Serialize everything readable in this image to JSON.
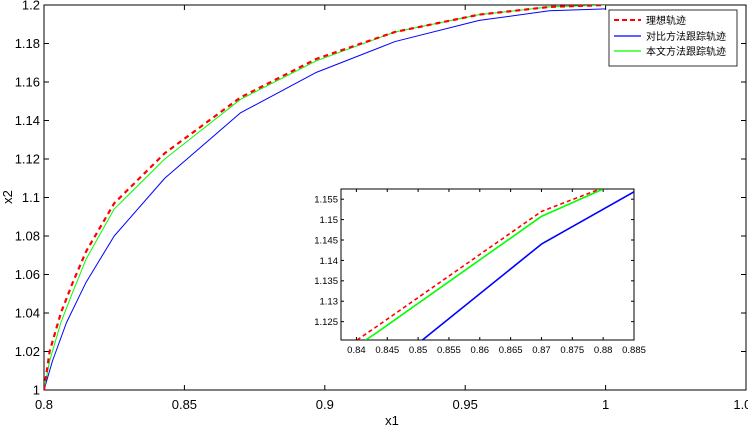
{
  "chart_data": [
    {
      "type": "line",
      "title": "",
      "xlabel": "x1",
      "ylabel": "x2",
      "xlim": [
        0.8,
        1.05
      ],
      "ylim": [
        1.0,
        1.2
      ],
      "xticks": [
        "0.8",
        "0.85",
        "0.9",
        "0.95",
        "1",
        "1.05"
      ],
      "yticks": [
        "1",
        "1.02",
        "1.04",
        "1.06",
        "1.08",
        "1.1",
        "1.12",
        "1.14",
        "1.16",
        "1.18",
        "1.2"
      ],
      "grid": false,
      "legend_position": "top-right",
      "series": [
        {
          "name": "理想轨迹",
          "color": "#ff0000",
          "style": "dashed",
          "points": [
            [
              0.8,
              1.0
            ],
            [
              0.802,
              1.02
            ],
            [
              0.806,
              1.04
            ],
            [
              0.81,
              1.055
            ],
            [
              0.815,
              1.072
            ],
            [
              0.825,
              1.097
            ],
            [
              0.843,
              1.123
            ],
            [
              0.87,
              1.152
            ],
            [
              0.897,
              1.172
            ],
            [
              0.925,
              1.186
            ],
            [
              0.955,
              1.195
            ],
            [
              0.98,
              1.199
            ],
            [
              1.0,
              1.2
            ]
          ]
        },
        {
          "name": "对比方法跟踪轨迹",
          "color": "#0000ff",
          "style": "solid",
          "points": [
            [
              0.8,
              1.0
            ],
            [
              0.803,
              1.015
            ],
            [
              0.808,
              1.035
            ],
            [
              0.815,
              1.056
            ],
            [
              0.825,
              1.08
            ],
            [
              0.843,
              1.11
            ],
            [
              0.87,
              1.144
            ],
            [
              0.897,
              1.165
            ],
            [
              0.925,
              1.181
            ],
            [
              0.955,
              1.192
            ],
            [
              0.98,
              1.197
            ],
            [
              1.0,
              1.198
            ]
          ]
        },
        {
          "name": "本文方法跟踪轨迹",
          "color": "#00ff00",
          "style": "solid",
          "points": [
            [
              0.8,
              1.0
            ],
            [
              0.802,
              1.015
            ],
            [
              0.806,
              1.035
            ],
            [
              0.81,
              1.05
            ],
            [
              0.815,
              1.068
            ],
            [
              0.825,
              1.094
            ],
            [
              0.843,
              1.12
            ],
            [
              0.87,
              1.151
            ],
            [
              0.897,
              1.171
            ],
            [
              0.925,
              1.186
            ],
            [
              0.955,
              1.195
            ],
            [
              0.98,
              1.199
            ],
            [
              1.0,
              1.2
            ]
          ]
        }
      ]
    },
    {
      "type": "line",
      "title": "",
      "xlim": [
        0.8375,
        0.885
      ],
      "ylim": [
        1.1205,
        1.1575
      ],
      "xticks": [
        "0.84",
        "0.845",
        "0.85",
        "0.855",
        "0.86",
        "0.865",
        "0.87",
        "0.875",
        "0.88",
        "0.885"
      ],
      "yticks": [
        "1.125",
        "1.13",
        "1.135",
        "1.14",
        "1.145",
        "1.15",
        "1.155"
      ],
      "grid": false,
      "series": [
        {
          "color": "#ff0000",
          "style": "dashed",
          "points": [
            [
              0.8401,
              1.1205
            ],
            [
              0.843,
              1.1235
            ],
            [
              0.87,
              1.152
            ],
            [
              0.8795,
              1.1575
            ]
          ]
        },
        {
          "color": "#0000ff",
          "style": "solid",
          "points": [
            [
              0.8507,
              1.1205
            ],
            [
              0.87,
              1.144
            ],
            [
              0.885,
              1.1568
            ]
          ]
        },
        {
          "color": "#00ff00",
          "style": "solid",
          "points": [
            [
              0.8415,
              1.1205
            ],
            [
              0.843,
              1.122
            ],
            [
              0.87,
              1.1508
            ],
            [
              0.88,
              1.1575
            ]
          ]
        }
      ]
    }
  ]
}
